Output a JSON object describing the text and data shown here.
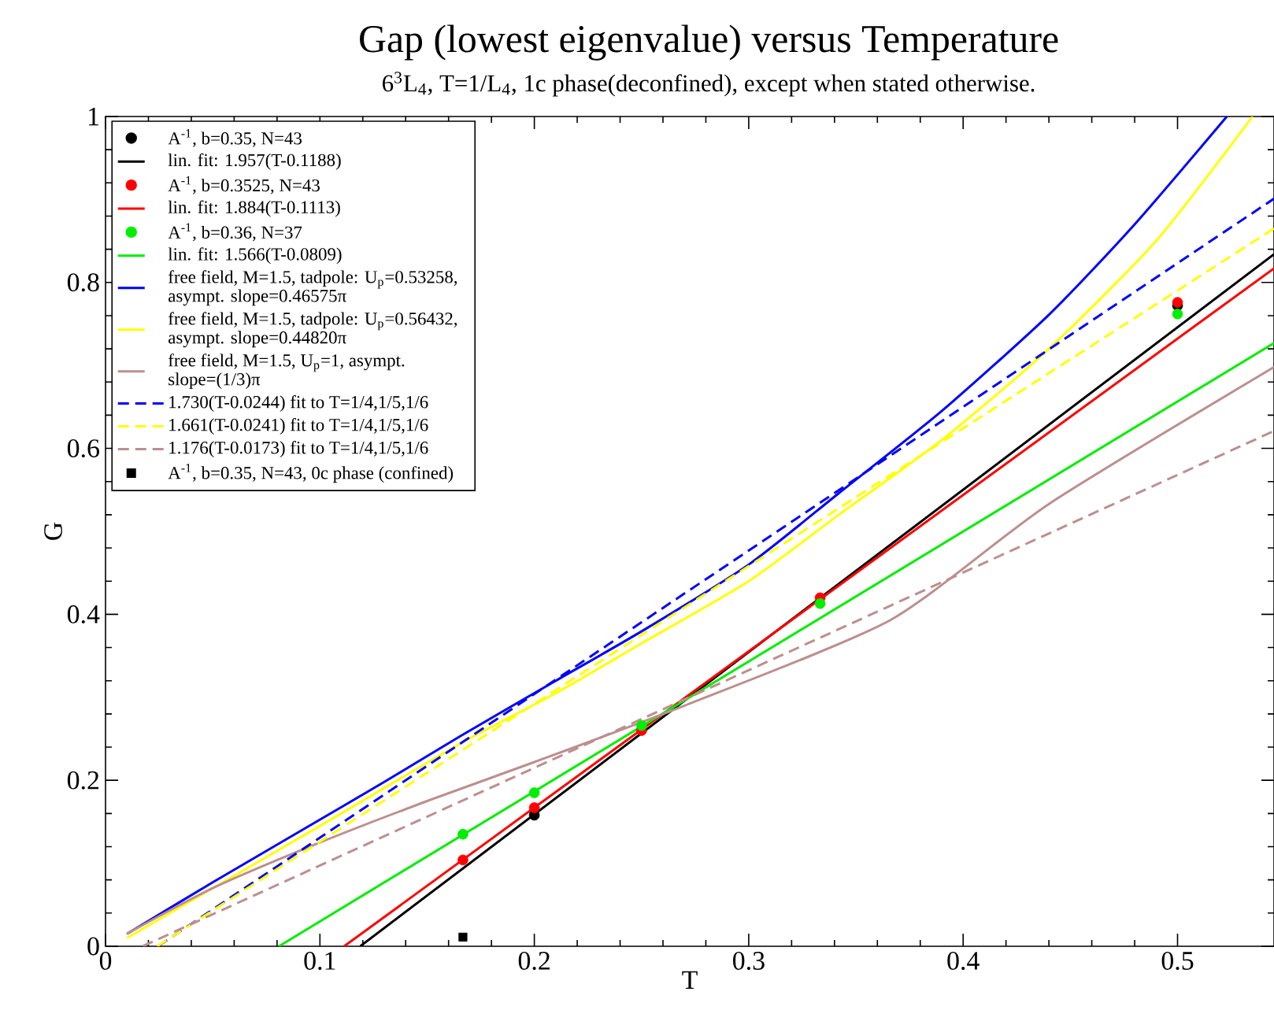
{
  "chart_data": {
    "type": "line",
    "title": "Gap (lowest eigenvalue) versus  Temperature",
    "subtitle": "6$^{3}$L$_{4}$, T=1/L$_{4}$,  1c phase(deconfined), except when stated otherwise.",
    "xlabel": "T",
    "ylabel": "G",
    "xlim": [
      0,
      0.545
    ],
    "ylim": [
      0,
      1
    ],
    "xticks": [
      0,
      0.1,
      0.2,
      0.3,
      0.4,
      0.5
    ],
    "yticks": [
      0,
      0.2,
      0.4,
      0.6,
      0.8,
      1
    ],
    "grid": false,
    "legend": "top left",
    "series": [
      {
        "type": "scatter",
        "name": "A$^{-1}$, b=0.35, N=43",
        "color": "#000000",
        "marker": "circle",
        "x": [
          0.2,
          0.5
        ],
        "values": [
          0.158,
          0.772
        ]
      },
      {
        "type": "line",
        "name": "lin. fit: 1.957(T-0.1188)",
        "color": "#000000",
        "line_style": "solid",
        "x": [
          0.1188,
          0.545
        ],
        "values": [
          0,
          0.834
        ]
      },
      {
        "type": "scatter",
        "name": "A$^{-1}$, b=0.3525, N=43",
        "color": "#ff0000",
        "marker": "circle",
        "x": [
          0.1667,
          0.2,
          0.25,
          0.3333,
          0.5
        ],
        "values": [
          0.104,
          0.167,
          0.26,
          0.42,
          0.776
        ]
      },
      {
        "type": "line",
        "name": "lin. fit: 1.884(T-0.1113)",
        "color": "#ff0000",
        "line_style": "solid",
        "x": [
          0.1113,
          0.545
        ],
        "values": [
          0,
          0.817
        ]
      },
      {
        "type": "scatter",
        "name": "A$^{-1}$, b=0.36, N=37",
        "color": "#00ee00",
        "marker": "circle",
        "x": [
          0.1667,
          0.2,
          0.25,
          0.3333,
          0.5
        ],
        "values": [
          0.135,
          0.185,
          0.266,
          0.413,
          0.762
        ]
      },
      {
        "type": "line",
        "name": "lin. fit: 1.566(T-0.0809)",
        "color": "#00ee00",
        "line_style": "solid",
        "x": [
          0.0809,
          0.545
        ],
        "values": [
          0,
          0.727
        ]
      },
      {
        "type": "line",
        "name": "free field, M=1.5, tadpole: U$_{p}$=0.53258, asympt. slope=0.46575π",
        "color": "#0000ff",
        "line_style": "solid",
        "x": [
          0.01,
          0.05,
          0.093,
          0.13,
          0.166,
          0.21,
          0.251,
          0.3,
          0.342,
          0.39,
          0.44,
          0.48,
          0.523
        ],
        "values": [
          0.015,
          0.077,
          0.142,
          0.198,
          0.254,
          0.32,
          0.381,
          0.46,
          0.546,
          0.645,
          0.761,
          0.87,
          1.0
        ]
      },
      {
        "type": "line",
        "name": "free field, M=1.5, tadpole: U$_{p}$=0.56432, asympt. slope=0.44820π",
        "color": "#ffff00",
        "line_style": "solid",
        "x": [
          0.01,
          0.05,
          0.1,
          0.166,
          0.21,
          0.25,
          0.3,
          0.342,
          0.39,
          0.44,
          0.49,
          0.535
        ],
        "values": [
          0.01,
          0.07,
          0.145,
          0.245,
          0.305,
          0.365,
          0.44,
          0.52,
          0.61,
          0.72,
          0.85,
          1.0
        ]
      },
      {
        "type": "line",
        "name": "free field, M=1.5, U$_{p}$=1, asympt. slope=(1/3)π",
        "color": "#bc8f8f",
        "line_style": "solid",
        "x": [
          0.01,
          0.05,
          0.1,
          0.15,
          0.2,
          0.27,
          0.366,
          0.44,
          0.545
        ],
        "values": [
          0.015,
          0.07,
          0.125,
          0.175,
          0.222,
          0.29,
          0.393,
          0.533,
          0.698
        ]
      },
      {
        "type": "line",
        "name": "1.730(T-0.0244) fit to T=1/4,1/5,1/6",
        "color": "#0000ff",
        "line_style": "dashed",
        "x": [
          0.0244,
          0.545
        ],
        "values": [
          0,
          0.901
        ]
      },
      {
        "type": "line",
        "name": "1.661(T-0.0241) fit to T=1/4,1/5,1/6",
        "color": "#ffff00",
        "line_style": "dashed",
        "x": [
          0.0241,
          0.545
        ],
        "values": [
          0,
          0.865
        ]
      },
      {
        "type": "line",
        "name": "1.176(T-0.0173) fit to T=1/4,1/5,1/6",
        "color": "#bc8f8f",
        "line_style": "dashed",
        "x": [
          0.0173,
          0.545
        ],
        "values": [
          0,
          0.621
        ]
      },
      {
        "type": "scatter",
        "name": "A$^{-1}$, b=0.35, N=43, 0c phase (confined)",
        "color": "#000000",
        "marker": "square",
        "x": [
          0.1667
        ],
        "values": [
          0.011
        ]
      }
    ]
  }
}
